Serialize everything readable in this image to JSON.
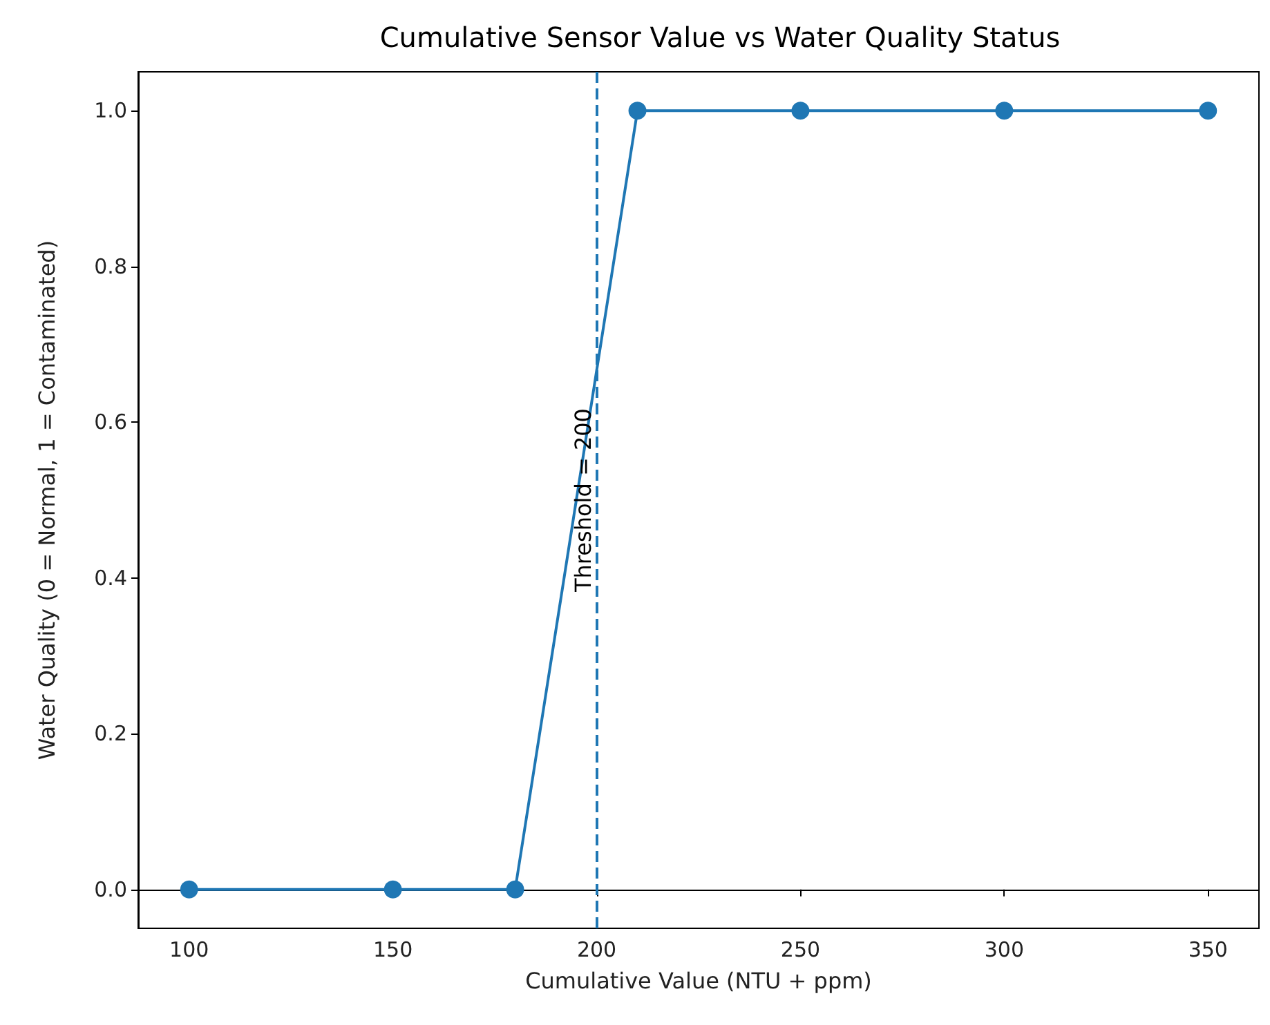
{
  "chart_data": {
    "type": "line",
    "title": "Cumulative Sensor Value vs Water Quality Status",
    "xlabel": "Cumulative Value (NTU + ppm)",
    "ylabel": "Water Quality (0 = Normal, 1 = Contaminated)",
    "x": [
      100,
      150,
      180,
      210,
      250,
      300,
      350
    ],
    "series": [
      {
        "color": "#1f77b4",
        "values": [
          0,
          0,
          0,
          1,
          1,
          1,
          1
        ]
      }
    ],
    "xlim": [
      87.5,
      362.5
    ],
    "xticks": [
      100,
      150,
      200,
      250,
      300,
      350
    ],
    "ylim": [
      -0.05,
      1.05
    ],
    "yticks": [
      {
        "value": 0,
        "label": "0.0"
      },
      {
        "value": 0.2,
        "label": "0.2"
      },
      {
        "value": 0.4,
        "label": "0.4"
      },
      {
        "value": 0.6,
        "label": "0.6"
      },
      {
        "value": 0.8,
        "label": "0.8"
      },
      {
        "value": 1,
        "label": "1.0"
      }
    ],
    "ref_lines": [
      {
        "axis": "x",
        "value": 200,
        "label": "Threshold = 200",
        "color": "#1f77b4",
        "line_style": "dashed"
      }
    ],
    "marker": "circle",
    "line_style": "solid",
    "grid": false
  }
}
